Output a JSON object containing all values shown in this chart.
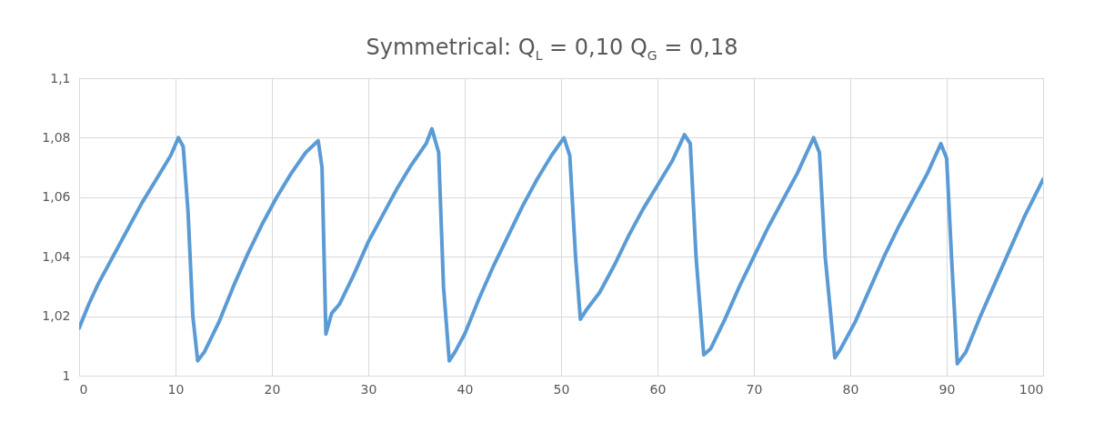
{
  "chart_data": {
    "type": "line",
    "title": "Symmetrical: Q$_{L}$ = 0,10  Q$_{G}$ = 0,18",
    "x": [
      0,
      1,
      2,
      3.5,
      5,
      6.5,
      8,
      9.5,
      10.3,
      10.8,
      11.3,
      11.8,
      12.3,
      13,
      14.5,
      16,
      17.5,
      19,
      20.5,
      22,
      23.5,
      24.8,
      25.2,
      25.6,
      26.2,
      27,
      28.5,
      30,
      31.5,
      33,
      34.5,
      36,
      36.6,
      37.3,
      37.8,
      38.4,
      39,
      40,
      41.5,
      43,
      44.5,
      46,
      47.5,
      49,
      50.3,
      50.9,
      51.5,
      52,
      52.6,
      54,
      55.5,
      57,
      58.5,
      60,
      61.5,
      62.8,
      63.4,
      64,
      64.8,
      65.5,
      67,
      68.5,
      70,
      71.5,
      73,
      74.5,
      76.2,
      76.8,
      77.4,
      78.4,
      79,
      80.5,
      82,
      83.5,
      85,
      86.5,
      88,
      89.4,
      90,
      90.5,
      91.1,
      92,
      93.5,
      95,
      96.5,
      98,
      100
    ],
    "series": [
      {
        "color": "#5b9bd5",
        "values": [
          1.016,
          1.024,
          1.031,
          1.04,
          1.049,
          1.058,
          1.066,
          1.074,
          1.08,
          1.077,
          1.055,
          1.02,
          1.005,
          1.008,
          1.018,
          1.03,
          1.041,
          1.051,
          1.06,
          1.068,
          1.075,
          1.079,
          1.07,
          1.014,
          1.021,
          1.024,
          1.034,
          1.045,
          1.054,
          1.063,
          1.071,
          1.078,
          1.083,
          1.075,
          1.03,
          1.005,
          1.008,
          1.014,
          1.026,
          1.037,
          1.047,
          1.057,
          1.066,
          1.074,
          1.08,
          1.074,
          1.04,
          1.019,
          1.022,
          1.028,
          1.037,
          1.047,
          1.056,
          1.064,
          1.072,
          1.081,
          1.078,
          1.04,
          1.007,
          1.009,
          1.019,
          1.03,
          1.04,
          1.05,
          1.059,
          1.068,
          1.08,
          1.075,
          1.04,
          1.006,
          1.009,
          1.018,
          1.029,
          1.04,
          1.05,
          1.059,
          1.068,
          1.078,
          1.073,
          1.04,
          1.004,
          1.008,
          1.02,
          1.031,
          1.042,
          1.053,
          1.066
        ]
      }
    ],
    "xlim": [
      0,
      100
    ],
    "xticks": [
      0,
      10,
      20,
      30,
      40,
      50,
      60,
      70,
      80,
      90,
      100
    ],
    "ylim": [
      1,
      1.1
    ],
    "yticks": [
      1,
      {
        "value": 1.02,
        "label": "1,02"
      },
      {
        "value": 1.04,
        "label": "1,04"
      },
      {
        "value": 1.06,
        "label": "1,06"
      },
      {
        "value": 1.08,
        "label": "1,08"
      },
      {
        "value": 1.1,
        "label": "1,1"
      }
    ],
    "grid": true,
    "line_style": "solid"
  }
}
